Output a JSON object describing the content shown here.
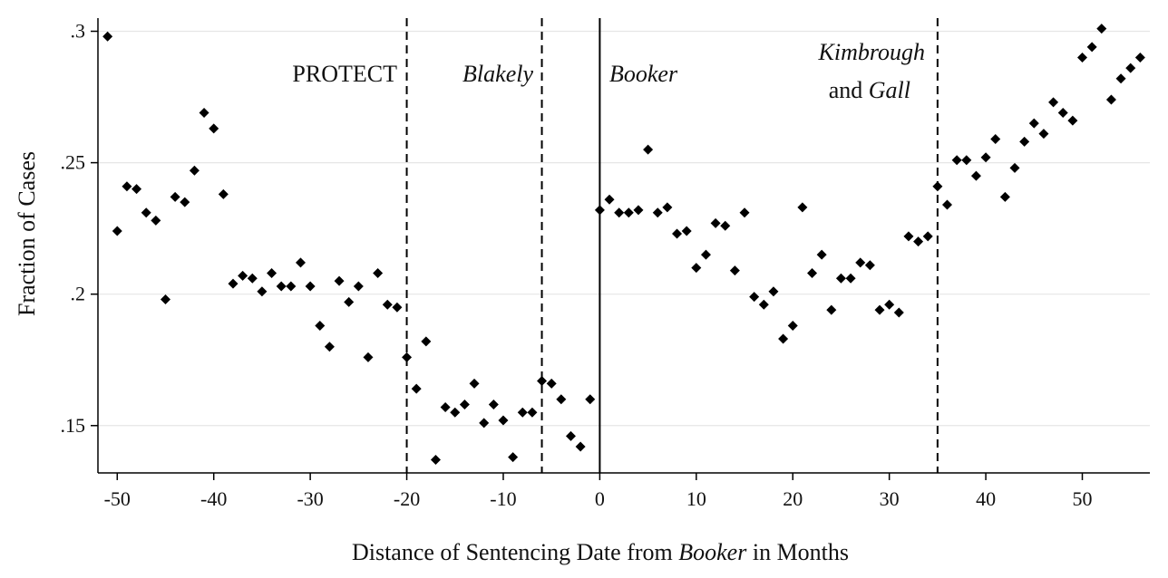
{
  "chart_data": {
    "type": "scatter",
    "xlabel_parts": [
      "Distance of Sentencing Date from ",
      "Booker",
      " in Months"
    ],
    "ylabel": "Fraction of Cases",
    "xlim": [
      -52,
      57
    ],
    "ylim": [
      0.132,
      0.305
    ],
    "x_ticks": [
      -50,
      -40,
      -30,
      -20,
      -10,
      0,
      10,
      20,
      30,
      40,
      50
    ],
    "x_tick_labels": [
      "-50",
      "-40",
      "-30",
      "-20",
      "-10",
      "0",
      "10",
      "20",
      "30",
      "40",
      "50"
    ],
    "y_ticks": [
      0.15,
      0.2,
      0.25,
      0.3
    ],
    "y_tick_labels": [
      ".15",
      ".2",
      ".25",
      ".3"
    ],
    "grid": true,
    "marker": "diamond",
    "marker_color": "#000000",
    "vertical_lines": [
      {
        "x": -20,
        "style": "dashed"
      },
      {
        "x": -6,
        "style": "dashed"
      },
      {
        "x": 0,
        "style": "solid"
      },
      {
        "x": 35,
        "style": "dashed"
      }
    ],
    "annotations": {
      "protect": "PROTECT",
      "blakely": "Blakely",
      "booker": "Booker",
      "kimbrough": "Kimbrough",
      "and_gall_and": "and ",
      "and_gall_gall": "Gall"
    },
    "points": [
      [
        -51,
        0.298
      ],
      [
        -50,
        0.224
      ],
      [
        -49,
        0.241
      ],
      [
        -48,
        0.24
      ],
      [
        -47,
        0.231
      ],
      [
        -46,
        0.228
      ],
      [
        -45,
        0.198
      ],
      [
        -44,
        0.237
      ],
      [
        -43,
        0.235
      ],
      [
        -42,
        0.247
      ],
      [
        -41,
        0.269
      ],
      [
        -40,
        0.263
      ],
      [
        -39,
        0.238
      ],
      [
        -38,
        0.204
      ],
      [
        -37,
        0.207
      ],
      [
        -36,
        0.206
      ],
      [
        -35,
        0.201
      ],
      [
        -34,
        0.208
      ],
      [
        -33,
        0.203
      ],
      [
        -32,
        0.203
      ],
      [
        -31,
        0.212
      ],
      [
        -30,
        0.203
      ],
      [
        -29,
        0.188
      ],
      [
        -28,
        0.18
      ],
      [
        -27,
        0.205
      ],
      [
        -26,
        0.197
      ],
      [
        -25,
        0.203
      ],
      [
        -24,
        0.176
      ],
      [
        -23,
        0.208
      ],
      [
        -22,
        0.196
      ],
      [
        -21,
        0.195
      ],
      [
        -20,
        0.176
      ],
      [
        -19,
        0.164
      ],
      [
        -18,
        0.182
      ],
      [
        -17,
        0.137
      ],
      [
        -16,
        0.157
      ],
      [
        -15,
        0.155
      ],
      [
        -14,
        0.158
      ],
      [
        -13,
        0.166
      ],
      [
        -12,
        0.151
      ],
      [
        -11,
        0.158
      ],
      [
        -10,
        0.152
      ],
      [
        -9,
        0.138
      ],
      [
        -8,
        0.155
      ],
      [
        -7,
        0.155
      ],
      [
        -6,
        0.167
      ],
      [
        -5,
        0.166
      ],
      [
        -4,
        0.16
      ],
      [
        -3,
        0.146
      ],
      [
        -2,
        0.142
      ],
      [
        -1,
        0.16
      ],
      [
        0,
        0.232
      ],
      [
        1,
        0.236
      ],
      [
        2,
        0.231
      ],
      [
        3,
        0.231
      ],
      [
        4,
        0.232
      ],
      [
        5,
        0.255
      ],
      [
        6,
        0.231
      ],
      [
        7,
        0.233
      ],
      [
        8,
        0.223
      ],
      [
        9,
        0.224
      ],
      [
        10,
        0.21
      ],
      [
        11,
        0.215
      ],
      [
        12,
        0.227
      ],
      [
        13,
        0.226
      ],
      [
        14,
        0.209
      ],
      [
        15,
        0.231
      ],
      [
        16,
        0.199
      ],
      [
        17,
        0.196
      ],
      [
        18,
        0.201
      ],
      [
        19,
        0.183
      ],
      [
        20,
        0.188
      ],
      [
        21,
        0.233
      ],
      [
        22,
        0.208
      ],
      [
        23,
        0.215
      ],
      [
        24,
        0.194
      ],
      [
        25,
        0.206
      ],
      [
        26,
        0.206
      ],
      [
        27,
        0.212
      ],
      [
        28,
        0.211
      ],
      [
        29,
        0.194
      ],
      [
        30,
        0.196
      ],
      [
        31,
        0.193
      ],
      [
        32,
        0.222
      ],
      [
        33,
        0.22
      ],
      [
        34,
        0.222
      ],
      [
        35,
        0.241
      ],
      [
        36,
        0.234
      ],
      [
        37,
        0.251
      ],
      [
        38,
        0.251
      ],
      [
        39,
        0.245
      ],
      [
        40,
        0.252
      ],
      [
        41,
        0.259
      ],
      [
        42,
        0.237
      ],
      [
        43,
        0.248
      ],
      [
        44,
        0.258
      ],
      [
        45,
        0.265
      ],
      [
        46,
        0.261
      ],
      [
        47,
        0.273
      ],
      [
        48,
        0.269
      ],
      [
        49,
        0.266
      ],
      [
        50,
        0.29
      ],
      [
        51,
        0.294
      ],
      [
        52,
        0.301
      ],
      [
        53,
        0.274
      ],
      [
        54,
        0.282
      ],
      [
        55,
        0.286
      ],
      [
        56,
        0.29
      ]
    ]
  }
}
